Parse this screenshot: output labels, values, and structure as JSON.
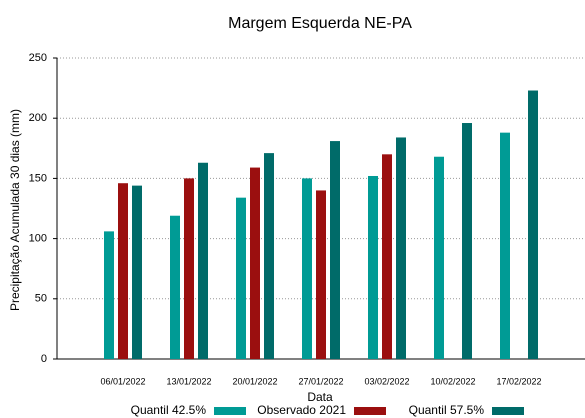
{
  "chart_data": {
    "type": "bar",
    "title": "Margem Esquerda NE-PA",
    "x_label": "Data",
    "y_label": "Precipitação Acumulada 30 dias (mm)",
    "categories": [
      "06/01/2022",
      "13/01/2022",
      "20/01/2022",
      "27/01/2022",
      "03/02/2022",
      "10/02/2022",
      "17/02/2022"
    ],
    "series": [
      {
        "name": "Quantil 42.5%",
        "color": "#009b95",
        "values": [
          106,
          119,
          134,
          150,
          152,
          168,
          188
        ]
      },
      {
        "name": "Observado 2021",
        "color": "#9b0f0f",
        "values": [
          146,
          150,
          159,
          140,
          170,
          null,
          null
        ]
      },
      {
        "name": "Quantil 57.5%",
        "color": "#006b69",
        "values": [
          144,
          163,
          171,
          181,
          184,
          196,
          223
        ]
      }
    ],
    "ylim": [
      0,
      250
    ],
    "yticks": [
      0,
      50,
      100,
      150,
      200,
      250
    ],
    "grid": true,
    "legend": "bottom"
  }
}
